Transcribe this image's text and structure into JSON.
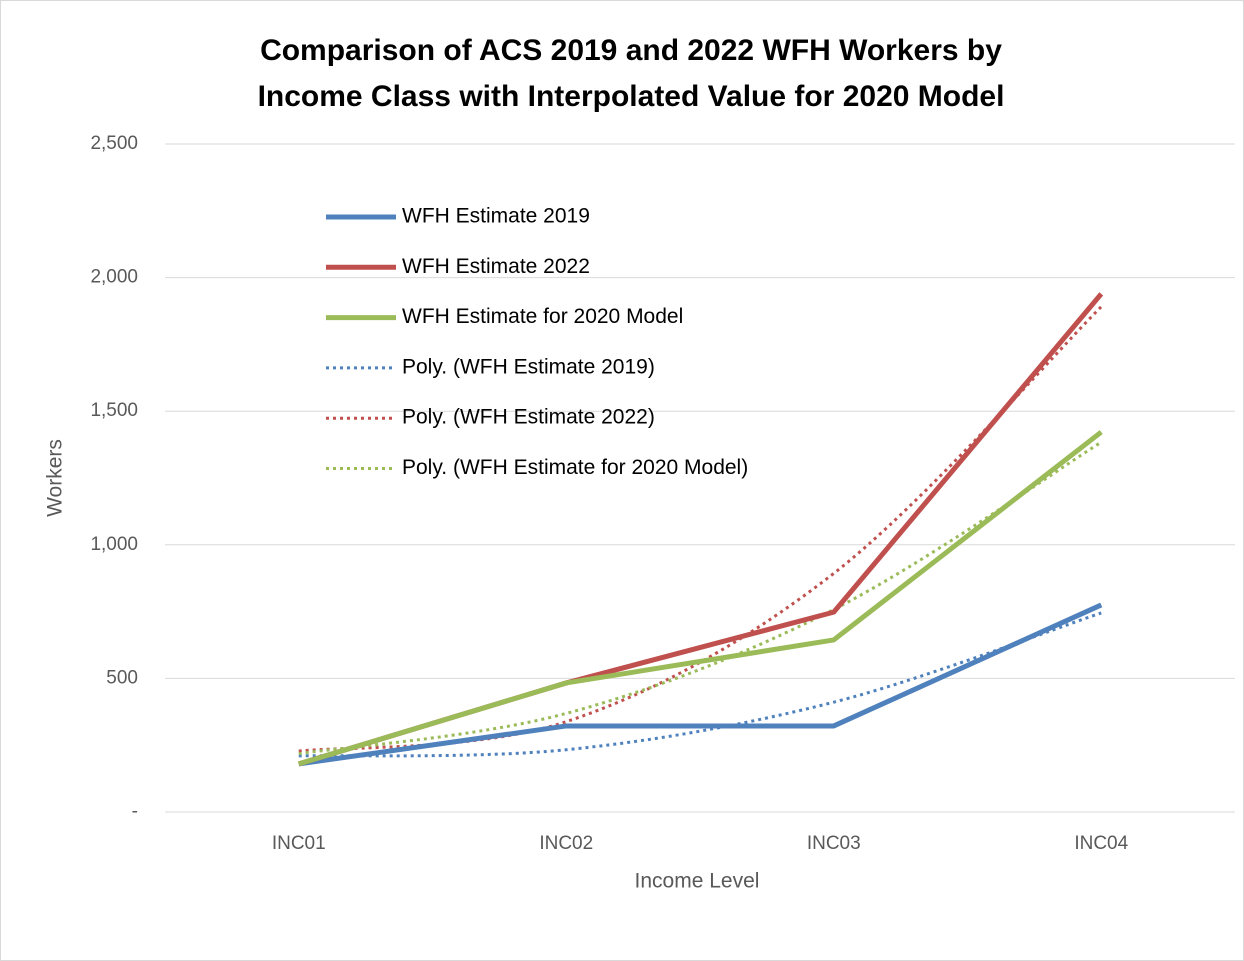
{
  "chart_data": {
    "type": "line",
    "title": [
      "Comparison of ACS 2019 and 2022 WFH Workers by",
      "Income Class with Interpolated Value for 2020 Model"
    ],
    "x_label": "Income Level",
    "y_label": "Workers",
    "categories": [
      "INC01",
      "INC02",
      "INC03",
      "INC04"
    ],
    "series": [
      {
        "name": "WFH Estimate 2019",
        "color": "#4f81bd",
        "style": "solid",
        "values": [
          180,
          322,
          322,
          775
        ]
      },
      {
        "name": "WFH Estimate 2022",
        "color": "#c0504d",
        "style": "solid",
        "values": [
          180,
          483,
          748,
          1939
        ]
      },
      {
        "name": "WFH Estimate for 2020 Model",
        "color": "#9bbb59",
        "style": "solid",
        "values": [
          180,
          483,
          644,
          1422
        ]
      },
      {
        "name": "Poly. (WFH Estimate 2019)",
        "color": "#4f81bd",
        "style": "dotted",
        "values": [
          210,
          233,
          411,
          745
        ]
      },
      {
        "name": "Poly. (WFH Estimate 2022)",
        "color": "#c0504d",
        "style": "dotted",
        "values": [
          228,
          338,
          893,
          1891
        ]
      },
      {
        "name": "Poly. (WFH Estimate for 2020 Model)",
        "color": "#9bbb59",
        "style": "dotted",
        "values": [
          218,
          369,
          758,
          1384
        ]
      }
    ],
    "ylim": [
      0,
      2500
    ],
    "yticks": [
      {
        "value": 0,
        "label": "-"
      },
      500,
      {
        "value": 1000,
        "label": "1,000"
      },
      {
        "value": 1500,
        "label": "1,500"
      },
      {
        "value": 2000,
        "label": "2,000"
      },
      {
        "value": 2500,
        "label": "2,500"
      }
    ],
    "grid": true,
    "legend": "upper left"
  }
}
